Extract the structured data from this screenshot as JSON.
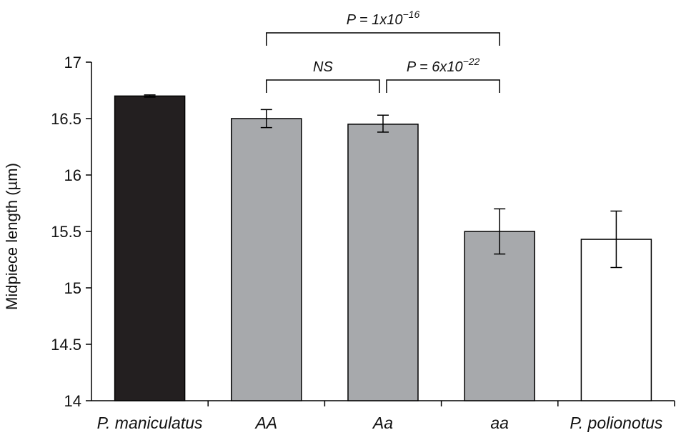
{
  "chart_data": {
    "type": "bar",
    "title": "",
    "xlabel": "",
    "ylabel": "Midpiece length (µm)",
    "ylim": [
      14,
      17
    ],
    "yticks": [
      "14",
      "14.5",
      "15",
      "15.5",
      "16",
      "16.5",
      "17"
    ],
    "grid": false,
    "categories": [
      "P. maniculatus",
      "AA",
      "Aa",
      "aa",
      "P. polionotus"
    ],
    "values": [
      16.7,
      16.5,
      16.45,
      15.5,
      15.43
    ],
    "error_low": [
      16.69,
      16.42,
      16.38,
      15.3,
      15.18
    ],
    "error_high": [
      16.71,
      16.58,
      16.53,
      15.7,
      15.68
    ],
    "bar_colors": [
      "#231f20",
      "#a7a9ac",
      "#a7a9ac",
      "#a7a9ac",
      "#ffffff"
    ],
    "annotations": [
      {
        "from": 1,
        "to": 2,
        "label_main": "NS",
        "label_sup": ""
      },
      {
        "from": 2,
        "to": 3,
        "label_main": "P = 6x10",
        "label_sup": "−22"
      },
      {
        "from": 1,
        "to": 3,
        "label_main": "P = 1x10",
        "label_sup": "−16"
      }
    ]
  }
}
